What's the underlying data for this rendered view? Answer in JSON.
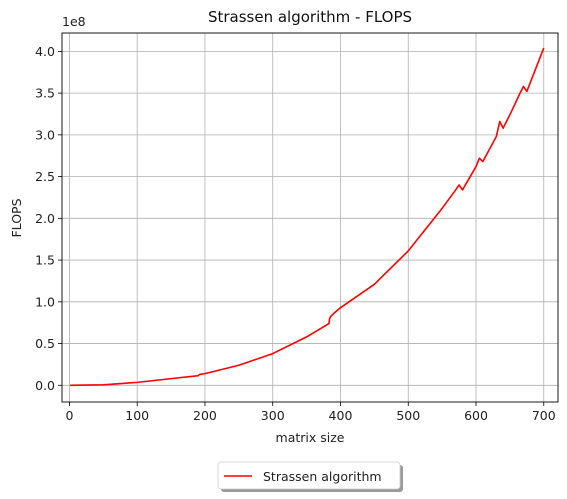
{
  "chart_data": {
    "type": "line",
    "title": "Strassen algorithm - FLOPS",
    "xlabel": "matrix size",
    "ylabel": "FLOPS",
    "y_offset_label": "1e8",
    "xlim": [
      -11,
      721
    ],
    "ylim": [
      -0.2,
      4.22
    ],
    "x_ticks": [
      0,
      100,
      200,
      300,
      400,
      500,
      600,
      700
    ],
    "x_tick_labels": [
      "0",
      "100",
      "200",
      "300",
      "400",
      "500",
      "600",
      "700"
    ],
    "y_ticks": [
      0.0,
      0.5,
      1.0,
      1.5,
      2.0,
      2.5,
      3.0,
      3.5,
      4.0
    ],
    "y_tick_labels": [
      "0.0",
      "0.5",
      "1.0",
      "1.5",
      "2.0",
      "2.5",
      "3.0",
      "3.5",
      "4.0"
    ],
    "grid": true,
    "legend_position": "below-center",
    "series": [
      {
        "name": "Strassen algorithm",
        "color": "#ff0000",
        "x": [
          1,
          50,
          100,
          150,
          190,
          192,
          200,
          250,
          300,
          350,
          383,
          384,
          385,
          390,
          400,
          450,
          500,
          550,
          570,
          575,
          580,
          600,
          605,
          610,
          630,
          635,
          640,
          650,
          665,
          670,
          675,
          700
        ],
        "y": [
          0.0,
          0.006,
          0.035,
          0.08,
          0.115,
          0.13,
          0.14,
          0.24,
          0.38,
          0.58,
          0.74,
          0.8,
          0.82,
          0.86,
          0.93,
          1.21,
          1.61,
          2.12,
          2.34,
          2.4,
          2.34,
          2.62,
          2.72,
          2.68,
          2.98,
          3.16,
          3.08,
          3.24,
          3.5,
          3.58,
          3.52,
          4.04
        ]
      }
    ]
  }
}
